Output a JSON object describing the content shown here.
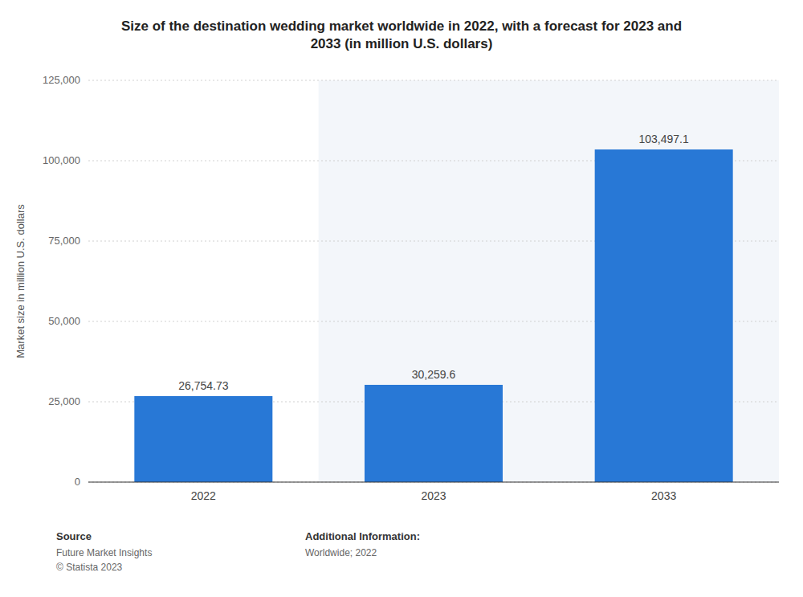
{
  "chart_data": {
    "type": "bar",
    "title": "Size of the destination wedding market worldwide in 2022, with a forecast for 2023 and\n2033 (in million U.S. dollars)",
    "categories": [
      "2022",
      "2023",
      "2033"
    ],
    "values": [
      26754.73,
      30259.6,
      103497.1
    ],
    "value_labels": [
      "26,754.73",
      "30,259.6",
      "103,497.1"
    ],
    "data_labels": true,
    "color": "#2878d6",
    "ylabel": "Market size in million U.S. dollars",
    "ylim": [
      0,
      125000
    ],
    "yticks": [
      0,
      {
        "value": 25000,
        "label": "25,000"
      },
      {
        "value": 50000,
        "label": "50,000"
      },
      {
        "value": 75000,
        "label": "75,000"
      },
      {
        "value": 100000,
        "label": "100,000"
      },
      {
        "value": 125000,
        "label": "125,000"
      }
    ],
    "grid": true,
    "annotations": [
      "Source",
      "Future Market Insights\n© Statista 2023",
      "Additional Information:",
      "Worldwide; 2022"
    ]
  }
}
